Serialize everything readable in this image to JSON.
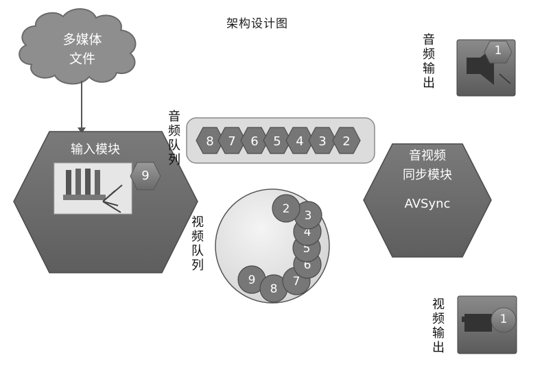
{
  "title": "架构设计图",
  "cloud": {
    "line1": "多媒体",
    "line2": "文件"
  },
  "input_module": {
    "label": "输入模块",
    "badge": "9"
  },
  "audio_queue": {
    "label_chars": [
      "音",
      "频",
      "队",
      "列"
    ],
    "items": [
      "8",
      "7",
      "6",
      "5",
      "4",
      "3",
      "2"
    ]
  },
  "video_queue": {
    "label_chars": [
      "视",
      "频",
      "队",
      "列"
    ],
    "items": [
      "2",
      "3",
      "4",
      "5",
      "6",
      "7",
      "8",
      "9"
    ]
  },
  "sync_module": {
    "line1": "音视频",
    "line2": "同步模块",
    "line3": "AVSync"
  },
  "audio_output": {
    "label_chars": [
      "音",
      "频",
      "输",
      "出"
    ],
    "badge": "1"
  },
  "video_output": {
    "label_chars": [
      "视",
      "频",
      "输",
      "出"
    ],
    "badge": "1"
  },
  "colors": {
    "hex_fill": "#6f6f6f",
    "badge_fill": "#8a8a8a",
    "cloud_fill": "#8e8e8e",
    "queue_bg": "#dcdcdc",
    "text_light": "#ffffff"
  }
}
